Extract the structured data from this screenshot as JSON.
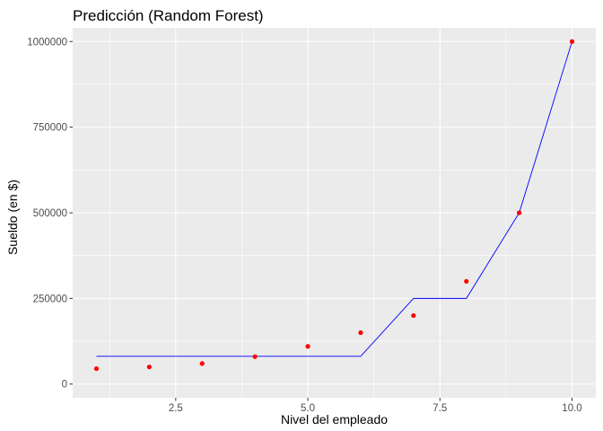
{
  "chart_data": {
    "type": "scatter",
    "title": "Predicción (Random Forest)",
    "xlabel": "Nivel del empleado",
    "ylabel": "Sueldo (en $)",
    "xlim": [
      0.55,
      10.45
    ],
    "ylim": [
      -40000,
      1040000
    ],
    "x_ticks": [
      2.5,
      5.0,
      7.5,
      10.0
    ],
    "x_tick_labels": [
      "2.5",
      "5.0",
      "7.5",
      "10.0"
    ],
    "y_ticks": [
      0,
      250000,
      500000,
      750000,
      1000000
    ],
    "y_tick_labels": [
      "0",
      "250000",
      "500000",
      "750000",
      "1000000"
    ],
    "grid": true,
    "background": "#ebebeb",
    "series": [
      {
        "kind": "points",
        "color": "#ff0000",
        "x": [
          1,
          2,
          3,
          4,
          5,
          6,
          7,
          8,
          9,
          10
        ],
        "y": [
          45000,
          50000,
          60000,
          80000,
          110000,
          150000,
          200000,
          300000,
          500000,
          1000000
        ]
      },
      {
        "kind": "line",
        "color": "#0000ff",
        "x": [
          1,
          2,
          3,
          4,
          5,
          6,
          7,
          8,
          9,
          10
        ],
        "y": [
          81000,
          81000,
          81000,
          81000,
          81000,
          81000,
          250000,
          250000,
          500000,
          1000000
        ]
      }
    ]
  }
}
